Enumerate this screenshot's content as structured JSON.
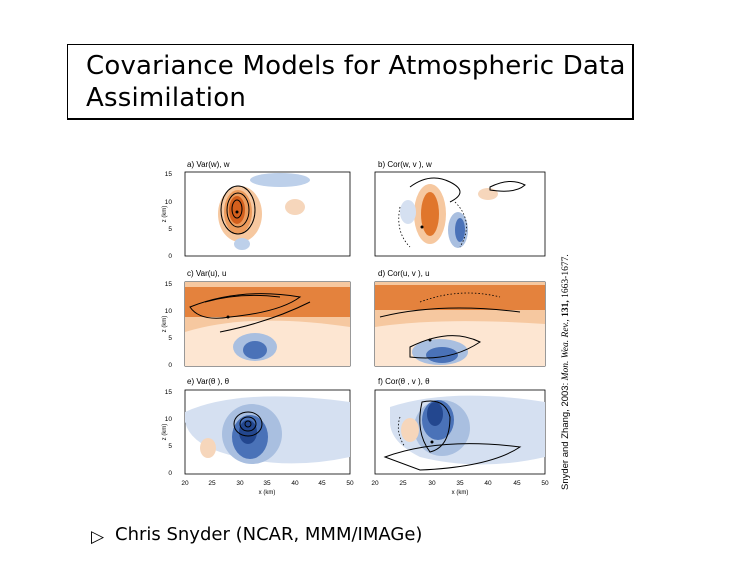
{
  "slide": {
    "title_line1": "Covariance Models for Atmospheric Data",
    "title_line2": "Assimilation"
  },
  "figure": {
    "panels": [
      {
        "id": "a",
        "label": "a) Var(w), w"
      },
      {
        "id": "b",
        "label": "b) Cor(w, v ), w"
      },
      {
        "id": "c",
        "label": "c) Var(u), u"
      },
      {
        "id": "d",
        "label": "d) Cor(u, v ), u"
      },
      {
        "id": "e",
        "label": "e) Var(θ ), θ"
      },
      {
        "id": "f",
        "label": "f) Cor(θ , v ), θ"
      }
    ],
    "y_axis_label": "z (km)",
    "y_ticks": [
      "0",
      "5",
      "10",
      "15"
    ],
    "x_ticks": [
      "20",
      "25",
      "30",
      "35",
      "40",
      "45",
      "50"
    ],
    "x_axis_label": "x (km)",
    "colors": {
      "warm": "#e0762c",
      "warm_light": "#f6c8a0",
      "cool": "#4a72b8",
      "cool_light": "#a9bfe0"
    }
  },
  "citation": {
    "authors": "Snyder and Zhang, 2003:",
    "journal": "Mon. Wea. Rev.,",
    "volume": "131,",
    "pages": "1663-1677."
  },
  "bullet": {
    "icon": "triangle-right-outline-icon",
    "text": "Chris Snyder (NCAR, MMM/IMAGe)"
  }
}
